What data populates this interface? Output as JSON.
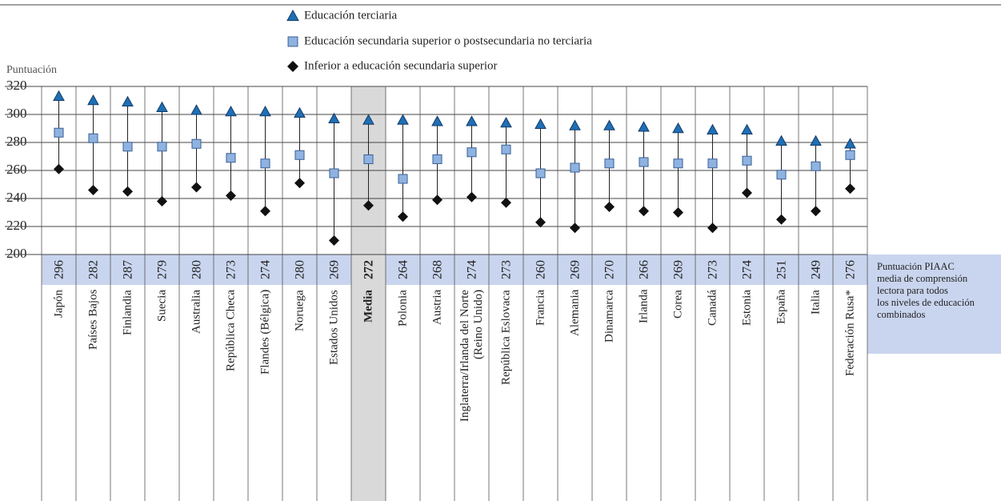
{
  "chart_data": {
    "type": "dot-range",
    "ylabel": "Puntuación",
    "categories": [
      "Japón",
      "Países Bajos",
      "Finlandia",
      "Suecia",
      "Australia",
      "República Checa",
      "Flandes (Bélgica)",
      "Noruega",
      "Estados Unidos",
      "Media",
      "Polonia",
      "Austria",
      "Inglaterra/Irlanda del Norte\n(Reino Unido)",
      "República Eslovaca",
      "Francia",
      "Alemania",
      "Dinamarca",
      "Irlanda",
      "Corea",
      "Canadá",
      "Estonia",
      "España",
      "Italia",
      "Federación Rusa*"
    ],
    "highlight": "Media",
    "series": [
      {
        "name": "Educación terciaria",
        "marker": "triangle",
        "color": "#1f6fb5",
        "values": [
          313,
          310,
          309,
          305,
          303,
          302,
          302,
          301,
          297,
          296,
          296,
          295,
          295,
          294,
          293,
          292,
          292,
          291,
          290,
          289,
          289,
          281,
          281,
          279
        ]
      },
      {
        "name": "Educación secundaria superior o postsecundaria no terciaria",
        "marker": "square",
        "color": "#8fb3e0",
        "values": [
          287,
          283,
          277,
          277,
          279,
          269,
          265,
          271,
          258,
          268,
          254,
          268,
          273,
          275,
          258,
          262,
          265,
          266,
          265,
          265,
          267,
          257,
          263,
          271
        ]
      },
      {
        "name": "Inferior a educación secundaria superior",
        "marker": "diamond",
        "color": "#111111",
        "values": [
          261,
          246,
          245,
          238,
          248,
          242,
          231,
          251,
          210,
          235,
          227,
          239,
          241,
          237,
          223,
          219,
          234,
          231,
          230,
          219,
          244,
          225,
          231,
          247
        ]
      }
    ],
    "mean_label": "Puntuación PIAAC\nmedia de comprensión\nlectora  para todos\nlos niveles de educación\ncombinados",
    "mean_scores": [
      296,
      282,
      287,
      279,
      280,
      273,
      274,
      280,
      269,
      272,
      264,
      268,
      274,
      273,
      260,
      269,
      270,
      266,
      269,
      273,
      274,
      251,
      249,
      276
    ],
    "ylim": [
      200,
      320
    ],
    "yticks": [
      200,
      220,
      240,
      260,
      280,
      300,
      320
    ],
    "grid": true
  }
}
